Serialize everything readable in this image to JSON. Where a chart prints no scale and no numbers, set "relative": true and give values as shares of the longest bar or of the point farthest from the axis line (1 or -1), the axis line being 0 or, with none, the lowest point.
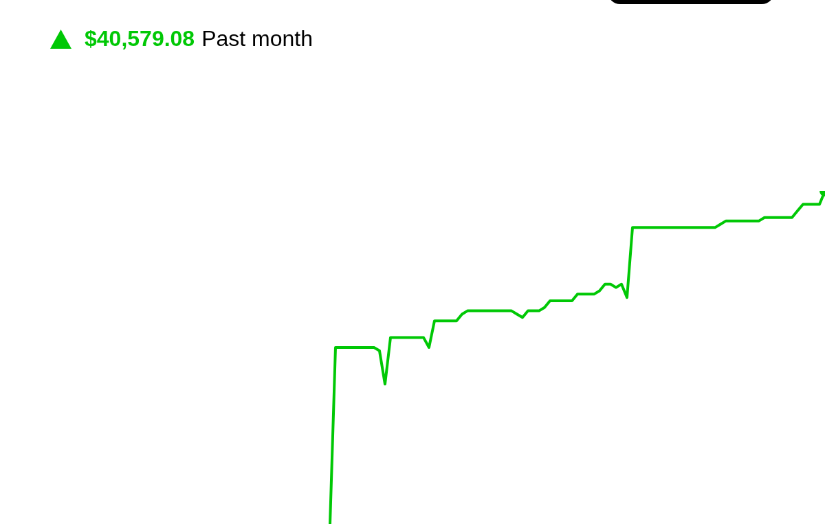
{
  "chart_data": {
    "type": "line",
    "title": "$40,579.08",
    "subtitle": "Past month",
    "relative": true,
    "categories": [
      null,
      null,
      null,
      null,
      null,
      null,
      null,
      null,
      null,
      null,
      null,
      null,
      null,
      null,
      null,
      null,
      null,
      null,
      null,
      null,
      null,
      null,
      null,
      null,
      null,
      null,
      null,
      null,
      null,
      null,
      null,
      null,
      null,
      null,
      null,
      null,
      null,
      null,
      null,
      null,
      null,
      null,
      null,
      null,
      null,
      null,
      null,
      null,
      null,
      null,
      null,
      null,
      null,
      null,
      null,
      null,
      null,
      null,
      null,
      null,
      null,
      null,
      null,
      null,
      null,
      null,
      null,
      null,
      null,
      null,
      null,
      null,
      null,
      null,
      null,
      null,
      null,
      null,
      null,
      null,
      null,
      null,
      null,
      null,
      null,
      null,
      null,
      null,
      null,
      null,
      null,
      null,
      null,
      null,
      null,
      null,
      null,
      null,
      null,
      null,
      null,
      null,
      null,
      null,
      null,
      null,
      null,
      null,
      null,
      null,
      null,
      null,
      null,
      null,
      null,
      null,
      null,
      null,
      null,
      null,
      null,
      null,
      null,
      null,
      null,
      null,
      null,
      null,
      null,
      null,
      null,
      null,
      null,
      null,
      null,
      null,
      null,
      null,
      null,
      null,
      null,
      null,
      null,
      null,
      null,
      null,
      null,
      null,
      null,
      null,
      null
    ],
    "series": [
      {
        "color": "#00c805",
        "values": [
          null,
          null,
          null,
          null,
          null,
          null,
          null,
          null,
          null,
          null,
          null,
          null,
          null,
          null,
          null,
          null,
          null,
          null,
          null,
          null,
          null,
          null,
          null,
          null,
          null,
          null,
          null,
          null,
          null,
          null,
          null,
          null,
          null,
          null,
          null,
          null,
          null,
          null,
          null,
          null,
          null,
          null,
          null,
          null,
          null,
          null,
          null,
          null,
          null,
          null,
          null,
          null,
          null,
          null,
          null,
          null,
          null,
          null,
          null,
          null,
          0,
          0.53,
          0.53,
          0.53,
          0.53,
          0.53,
          0.53,
          0.53,
          0.53,
          0.52,
          0.42,
          0.56,
          0.56,
          0.56,
          0.56,
          0.56,
          0.56,
          0.56,
          0.53,
          0.61,
          0.61,
          0.61,
          0.61,
          0.61,
          0.63,
          0.64,
          0.64,
          0.64,
          0.64,
          0.64,
          0.64,
          0.64,
          0.64,
          0.64,
          0.63,
          0.62,
          0.64,
          0.64,
          0.64,
          0.65,
          0.67,
          0.67,
          0.67,
          0.67,
          0.67,
          0.69,
          0.69,
          0.69,
          0.69,
          0.7,
          0.72,
          0.72,
          0.71,
          0.72,
          0.68,
          0.89,
          0.89,
          0.89,
          0.89,
          0.89,
          0.89,
          0.89,
          0.89,
          0.89,
          0.89,
          0.89,
          0.89,
          0.89,
          0.89,
          0.89,
          0.89,
          0.9,
          0.91,
          0.91,
          0.91,
          0.91,
          0.91,
          0.91,
          0.91,
          0.92,
          0.92,
          0.92,
          0.92,
          0.92,
          0.92,
          0.94,
          0.96,
          0.96,
          0.96,
          0.96,
          1
        ]
      }
    ]
  }
}
